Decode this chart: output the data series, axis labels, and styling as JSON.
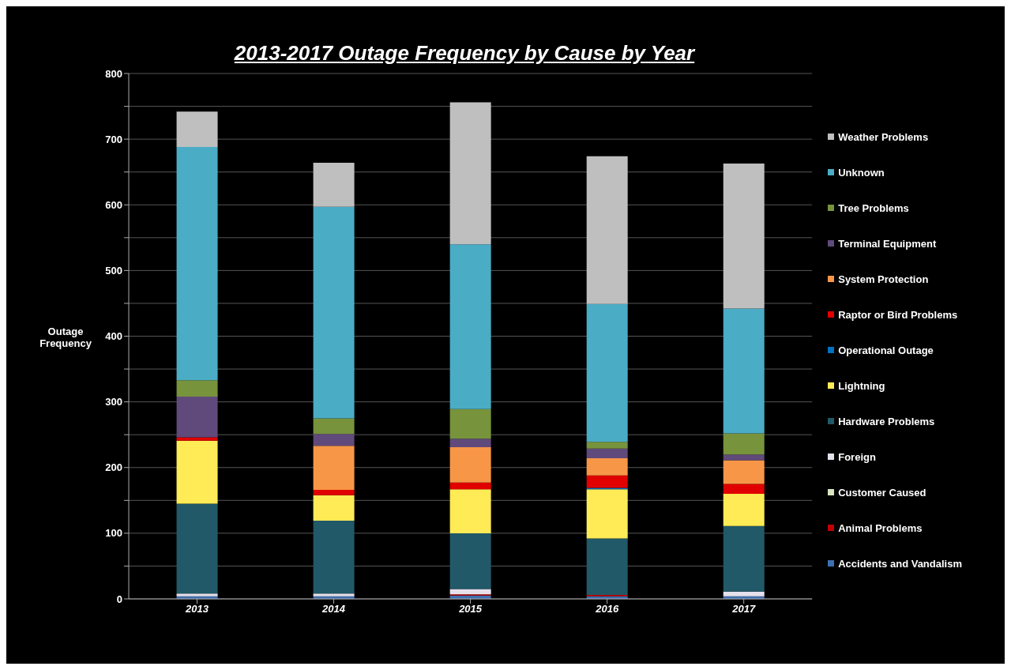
{
  "chart_data": {
    "type": "bar",
    "title": "2013-2017 Outage Frequency by Cause by Year",
    "ylabel": "Outage Frequency",
    "categories": [
      "2013",
      "2014",
      "2015",
      "2016",
      "2017"
    ],
    "stacked": true,
    "ylim": [
      0,
      800
    ],
    "yticks": [
      0,
      {
        "value": 50,
        "label": null
      },
      100,
      {
        "value": 150,
        "label": null
      },
      200,
      {
        "value": 250,
        "label": null
      },
      300,
      {
        "value": 350,
        "label": null
      },
      400,
      {
        "value": 450,
        "label": null
      },
      500,
      {
        "value": 550,
        "label": null
      },
      600,
      {
        "value": 650,
        "label": null
      },
      700,
      {
        "value": 750,
        "label": null
      },
      800
    ],
    "grid": "y",
    "legend": "right",
    "series": [
      {
        "name": "Accidents and Vandalism",
        "color": "#3d6fb0",
        "values": [
          4,
          4,
          5,
          4,
          4
        ]
      },
      {
        "name": "Animal Problems",
        "color": "#c00000",
        "values": [
          0,
          0,
          2,
          2,
          0
        ]
      },
      {
        "name": "Customer Caused",
        "color": "#d7e4bd",
        "values": [
          0,
          0,
          0,
          0,
          0
        ]
      },
      {
        "name": "Foreign",
        "color": "#e6e0ec",
        "values": [
          4,
          4,
          8,
          0,
          7
        ]
      },
      {
        "name": "Hardware Problems",
        "color": "#215968",
        "values": [
          137,
          111,
          85,
          86,
          100
        ]
      },
      {
        "name": "Lightning",
        "color": "#ffeb55",
        "values": [
          96,
          39,
          67,
          75,
          49
        ]
      },
      {
        "name": "Operational Outage",
        "color": "#0070c0",
        "values": [
          0,
          0,
          0,
          2,
          0
        ]
      },
      {
        "name": "Raptor or Bird Problems",
        "color": "#e00000",
        "values": [
          5,
          8,
          10,
          19,
          15
        ]
      },
      {
        "name": "System Protection",
        "color": "#f79646",
        "values": [
          0,
          67,
          54,
          26,
          36
        ]
      },
      {
        "name": "Terminal Equipment",
        "color": "#604a7b",
        "values": [
          62,
          18,
          13,
          15,
          9
        ]
      },
      {
        "name": "Tree Problems",
        "color": "#77933c",
        "values": [
          25,
          24,
          45,
          10,
          32
        ]
      },
      {
        "name": "Unknown",
        "color": "#4bacc6",
        "values": [
          355,
          322,
          251,
          210,
          190
        ]
      },
      {
        "name": "Weather Problems",
        "color": "#bfbfbf",
        "values": [
          54,
          67,
          216,
          225,
          221
        ]
      }
    ]
  }
}
